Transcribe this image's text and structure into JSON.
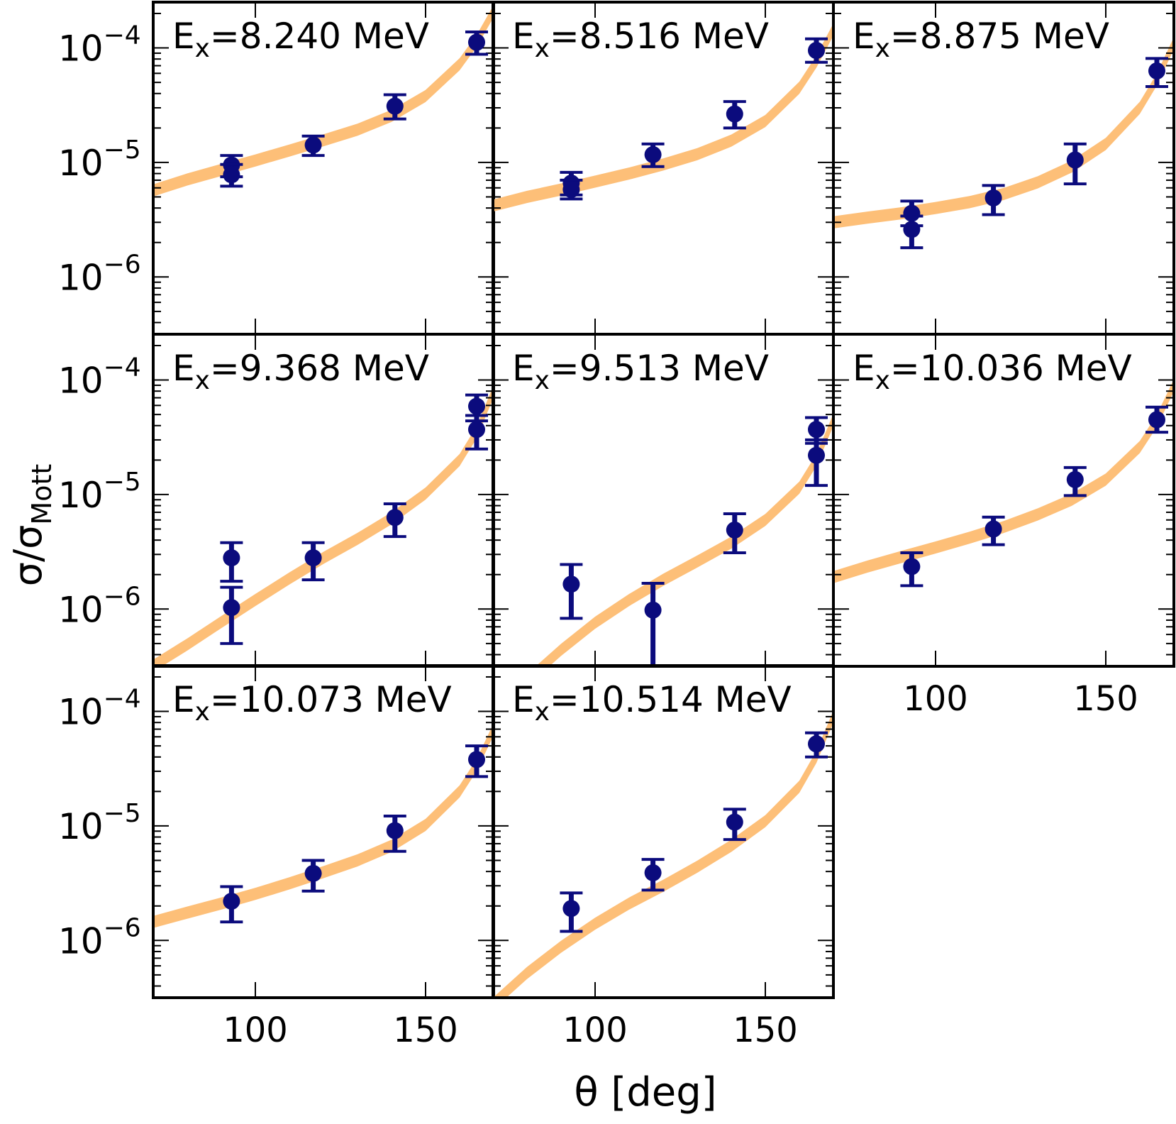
{
  "chart_data": {
    "type": "scatter",
    "layout": {
      "rows": 3,
      "cols": 3
    },
    "xlabel": "θ [deg]",
    "ylabel_main": "σ/σ",
    "ylabel_sub": "Mott",
    "xlim": [
      70,
      170
    ],
    "ylim_log10": [
      -6.5,
      -3.6
    ],
    "xticks": [
      100,
      150
    ],
    "xtick_labels": [
      "100",
      "150"
    ],
    "yticks_log10": [
      -6,
      -5,
      -4
    ],
    "ytick_label_base": "10",
    "ytick_label_exps": [
      "−6",
      "−5",
      "−4"
    ],
    "label_prefix": "E",
    "label_sub": "x",
    "colors": {
      "points": "#0b0b7d",
      "band": "#fdbf78",
      "frame": "#000000"
    },
    "panels": [
      {
        "label": "=8.240 MeV",
        "points": [
          {
            "x": 93,
            "y": 9.5e-06,
            "lo": 7.5e-06,
            "hi": 1.15e-05
          },
          {
            "x": 93,
            "y": 7.8e-06,
            "lo": 6.2e-06,
            "hi": 9.6e-06
          },
          {
            "x": 117,
            "y": 1.42e-05,
            "lo": 1.15e-05,
            "hi": 1.7e-05
          },
          {
            "x": 141,
            "y": 3.1e-05,
            "lo": 2.4e-05,
            "hi": 3.9e-05
          },
          {
            "x": 165,
            "y": 0.000112,
            "lo": 8.8e-05,
            "hi": 0.000138
          }
        ],
        "band": {
          "x": [
            70,
            80,
            90,
            100,
            110,
            120,
            130,
            140,
            150,
            160,
            165,
            170
          ],
          "y": [
            5.7e-06,
            7.1e-06,
            8.6e-06,
            1.04e-05,
            1.27e-05,
            1.56e-05,
            1.93e-05,
            2.55e-05,
            3.8e-05,
            7.2e-05,
            0.000115,
            0.00021
          ]
        }
      },
      {
        "label": "=8.516 MeV",
        "points": [
          {
            "x": 93,
            "y": 6.6e-06,
            "lo": 5.2e-06,
            "hi": 8.2e-06
          },
          {
            "x": 93,
            "y": 5.8e-06,
            "lo": 4.8e-06,
            "hi": 7e-06
          },
          {
            "x": 117,
            "y": 1.17e-05,
            "lo": 9.2e-06,
            "hi": 1.45e-05
          },
          {
            "x": 141,
            "y": 2.65e-05,
            "lo": 2e-05,
            "hi": 3.4e-05
          },
          {
            "x": 165,
            "y": 9.5e-05,
            "lo": 7.5e-05,
            "hi": 0.00012
          }
        ],
        "band": {
          "x": [
            70,
            80,
            90,
            100,
            110,
            120,
            130,
            140,
            150,
            160,
            165,
            170
          ],
          "y": [
            4.2e-06,
            5e-06,
            5.8e-06,
            6.8e-06,
            8e-06,
            9.6e-06,
            1.18e-05,
            1.55e-05,
            2.3e-05,
            4.5e-05,
            7.6e-05,
            0.000145
          ]
        }
      },
      {
        "label": "=8.875 MeV",
        "points": [
          {
            "x": 93,
            "y": 3.6e-06,
            "lo": 2.8e-06,
            "hi": 4.6e-06
          },
          {
            "x": 93,
            "y": 2.6e-06,
            "lo": 1.8e-06,
            "hi": 3.4e-06
          },
          {
            "x": 117,
            "y": 4.9e-06,
            "lo": 3.5e-06,
            "hi": 6.3e-06
          },
          {
            "x": 141,
            "y": 1.05e-05,
            "lo": 6.5e-06,
            "hi": 1.45e-05
          },
          {
            "x": 165,
            "y": 6.3e-05,
            "lo": 4.6e-05,
            "hi": 8.1e-05
          }
        ],
        "band": {
          "x": [
            70,
            80,
            90,
            100,
            110,
            120,
            130,
            140,
            150,
            160,
            165,
            170
          ],
          "y": [
            3e-06,
            3.3e-06,
            3.6e-06,
            4e-06,
            4.5e-06,
            5.3e-06,
            6.7e-06,
            9.2e-06,
            1.45e-05,
            3e-05,
            5.3e-05,
            0.00011
          ]
        }
      },
      {
        "label": "=9.368 MeV",
        "points": [
          {
            "x": 93,
            "y": 2.8e-06,
            "lo": 1.75e-06,
            "hi": 3.8e-06
          },
          {
            "x": 93,
            "y": 1.03e-06,
            "lo": 5e-07,
            "hi": 1.55e-06
          },
          {
            "x": 117,
            "y": 2.8e-06,
            "lo": 1.8e-06,
            "hi": 3.8e-06
          },
          {
            "x": 141,
            "y": 6.3e-06,
            "lo": 4.3e-06,
            "hi": 8.3e-06
          },
          {
            "x": 165,
            "y": 5.9e-05,
            "lo": 4.4e-05,
            "hi": 7.4e-05
          },
          {
            "x": 165,
            "y": 3.7e-05,
            "lo": 2.5e-05,
            "hi": 4.9e-05
          }
        ],
        "band": {
          "x": [
            70,
            80,
            90,
            100,
            110,
            120,
            130,
            140,
            150,
            160,
            165,
            170
          ],
          "y": [
            3.2e-07,
            4.9e-07,
            7.7e-07,
            1.2e-06,
            1.85e-06,
            2.8e-06,
            4.1e-06,
            6.2e-06,
            1.02e-05,
            2e-05,
            3.5e-05,
            8e-05
          ]
        }
      },
      {
        "label": "=9.513 MeV",
        "points": [
          {
            "x": 93,
            "y": 1.65e-06,
            "lo": 8.3e-07,
            "hi": 2.45e-06
          },
          {
            "x": 117,
            "y": 9.8e-07,
            "lo": 2e-07,
            "hi": 1.68e-06
          },
          {
            "x": 141,
            "y": 4.9e-06,
            "lo": 3.1e-06,
            "hi": 6.8e-06
          },
          {
            "x": 165,
            "y": 3.7e-05,
            "lo": 2.8e-05,
            "hi": 4.7e-05
          },
          {
            "x": 165,
            "y": 2.2e-05,
            "lo": 1.2e-05,
            "hi": 3e-05
          }
        ],
        "band": {
          "x": [
            70,
            80,
            90,
            100,
            110,
            120,
            130,
            140,
            150,
            160,
            165,
            170
          ],
          "y": [
            1.3e-07,
            2.4e-07,
            4.4e-07,
            7.6e-07,
            1.2e-06,
            1.8e-06,
            2.6e-06,
            3.8e-06,
            6e-06,
            1.15e-05,
            2e-05,
            4.5e-05
          ]
        }
      },
      {
        "label": "=10.036 MeV",
        "points": [
          {
            "x": 93,
            "y": 2.35e-06,
            "lo": 1.6e-06,
            "hi": 3.1e-06
          },
          {
            "x": 117,
            "y": 5e-06,
            "lo": 3.65e-06,
            "hi": 6.35e-06
          },
          {
            "x": 141,
            "y": 1.35e-05,
            "lo": 9.8e-06,
            "hi": 1.72e-05
          },
          {
            "x": 165,
            "y": 4.5e-05,
            "lo": 3.5e-05,
            "hi": 5.8e-05
          }
        ],
        "band": {
          "x": [
            70,
            80,
            90,
            100,
            110,
            120,
            130,
            140,
            150,
            160,
            165,
            170
          ],
          "y": [
            1.9e-06,
            2.35e-06,
            2.85e-06,
            3.45e-06,
            4.2e-06,
            5.2e-06,
            6.7e-06,
            9e-06,
            1.35e-05,
            2.6e-05,
            4.4e-05,
            9e-05
          ]
        }
      },
      {
        "label": "=10.073 MeV",
        "points": [
          {
            "x": 93,
            "y": 2.2e-06,
            "lo": 1.45e-06,
            "hi": 2.95e-06
          },
          {
            "x": 117,
            "y": 3.85e-06,
            "lo": 2.7e-06,
            "hi": 5e-06
          },
          {
            "x": 141,
            "y": 9.1e-06,
            "lo": 6e-06,
            "hi": 1.22e-05
          },
          {
            "x": 165,
            "y": 3.8e-05,
            "lo": 2.7e-05,
            "hi": 5e-05
          }
        ],
        "band": {
          "x": [
            70,
            80,
            90,
            100,
            110,
            120,
            130,
            140,
            150,
            160,
            165,
            170
          ],
          "y": [
            1.45e-06,
            1.75e-06,
            2.1e-06,
            2.55e-06,
            3.15e-06,
            3.95e-06,
            5e-06,
            6.7e-06,
            1.02e-05,
            2e-05,
            3.4e-05,
            7e-05
          ]
        }
      },
      {
        "label": "=10.514 MeV",
        "points": [
          {
            "x": 93,
            "y": 1.9e-06,
            "lo": 1.2e-06,
            "hi": 2.6e-06
          },
          {
            "x": 117,
            "y": 3.9e-06,
            "lo": 2.75e-06,
            "hi": 5.1e-06
          },
          {
            "x": 141,
            "y": 1.08e-05,
            "lo": 7.6e-06,
            "hi": 1.4e-05
          },
          {
            "x": 165,
            "y": 5.2e-05,
            "lo": 4e-05,
            "hi": 6.5e-05
          }
        ],
        "band": {
          "x": [
            70,
            80,
            90,
            100,
            110,
            120,
            130,
            140,
            150,
            160,
            165,
            170
          ],
          "y": [
            2.8e-07,
            5.2e-07,
            8.8e-07,
            1.4e-06,
            2.1e-06,
            3e-06,
            4.4e-06,
            6.7e-06,
            1.1e-05,
            2.2e-05,
            4e-05,
            9e-05
          ]
        }
      }
    ]
  }
}
